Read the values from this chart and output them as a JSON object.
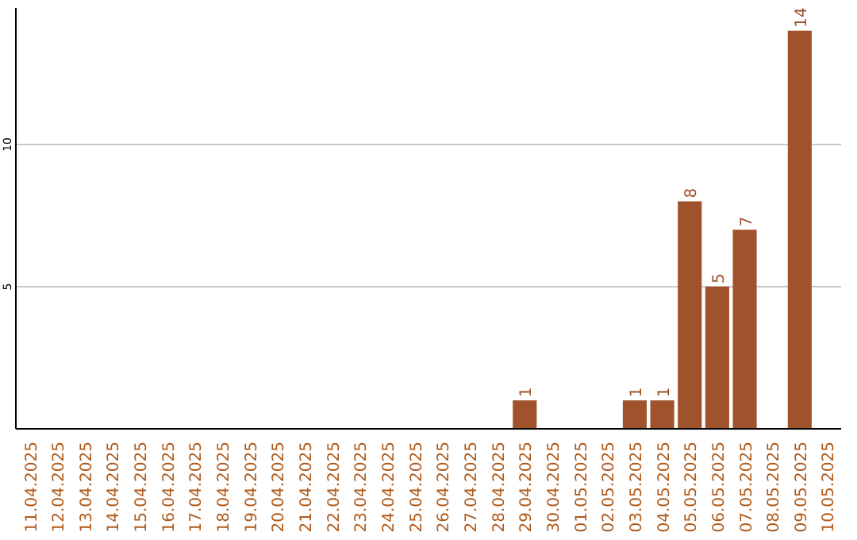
{
  "chart_data": {
    "type": "bar",
    "categories": [
      "11.04.2025",
      "12.04.2025",
      "13.04.2025",
      "14.04.2025",
      "15.04.2025",
      "16.04.2025",
      "17.04.2025",
      "18.04.2025",
      "19.04.2025",
      "20.04.2025",
      "21.04.2025",
      "22.04.2025",
      "23.04.2025",
      "24.04.2025",
      "25.04.2025",
      "26.04.2025",
      "27.04.2025",
      "28.04.2025",
      "29.04.2025",
      "30.04.2025",
      "01.05.2025",
      "02.05.2025",
      "03.05.2025",
      "04.05.2025",
      "05.05.2025",
      "06.05.2025",
      "07.05.2025",
      "08.05.2025",
      "09.05.2025",
      "10.05.2025"
    ],
    "values": [
      0,
      0,
      0,
      0,
      0,
      0,
      0,
      0,
      0,
      0,
      0,
      0,
      0,
      0,
      0,
      0,
      0,
      0,
      1,
      0,
      0,
      0,
      1,
      1,
      8,
      5,
      7,
      0,
      14,
      0
    ],
    "value_labels": [
      null,
      null,
      null,
      null,
      null,
      null,
      null,
      null,
      null,
      null,
      null,
      null,
      null,
      null,
      null,
      null,
      null,
      null,
      "1",
      null,
      null,
      null,
      "1",
      "1",
      "8",
      "5",
      "7",
      null,
      "14",
      null
    ],
    "color": "#a0522d",
    "ylim": [
      0,
      14.8
    ],
    "yticks": [
      5,
      10
    ],
    "grid": "y"
  }
}
